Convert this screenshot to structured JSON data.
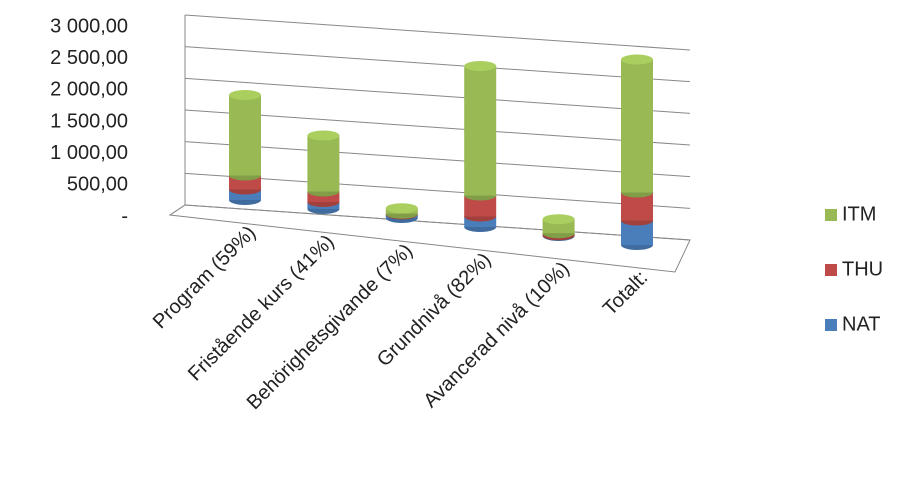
{
  "chart_data": {
    "type": "bar3d",
    "categories": [
      "Program (59%)",
      "Fristående kurs (41%)",
      "Behörighetsgivande (7%)",
      "Grundnivå (82%)",
      "Avancerad nivå (10%)",
      "Totalt:"
    ],
    "series": [
      {
        "name": "NAT",
        "color": "#4a7ebb",
        "values": [
          150,
          100,
          50,
          150,
          10,
          350
        ]
      },
      {
        "name": "THU",
        "color": "#be4b48",
        "values": [
          200,
          150,
          10,
          300,
          30,
          400
        ]
      },
      {
        "name": "ITM",
        "color": "#98b954",
        "values": [
          1150,
          800,
          80,
          1850,
          200,
          1900
        ]
      }
    ],
    "ylim": [
      0,
      3000
    ],
    "yticks": [
      {
        "value": 0,
        "label": "-"
      },
      {
        "value": 500,
        "label": "500,00"
      },
      {
        "value": 1000,
        "label": "1 000,00"
      },
      {
        "value": 1500,
        "label": "1 500,00"
      },
      {
        "value": 2000,
        "label": "2 000,00"
      },
      {
        "value": 2500,
        "label": "2 500,00"
      },
      {
        "value": 3000,
        "label": "3 000,00"
      }
    ],
    "stacked": true,
    "grid": true,
    "legend": "right"
  }
}
